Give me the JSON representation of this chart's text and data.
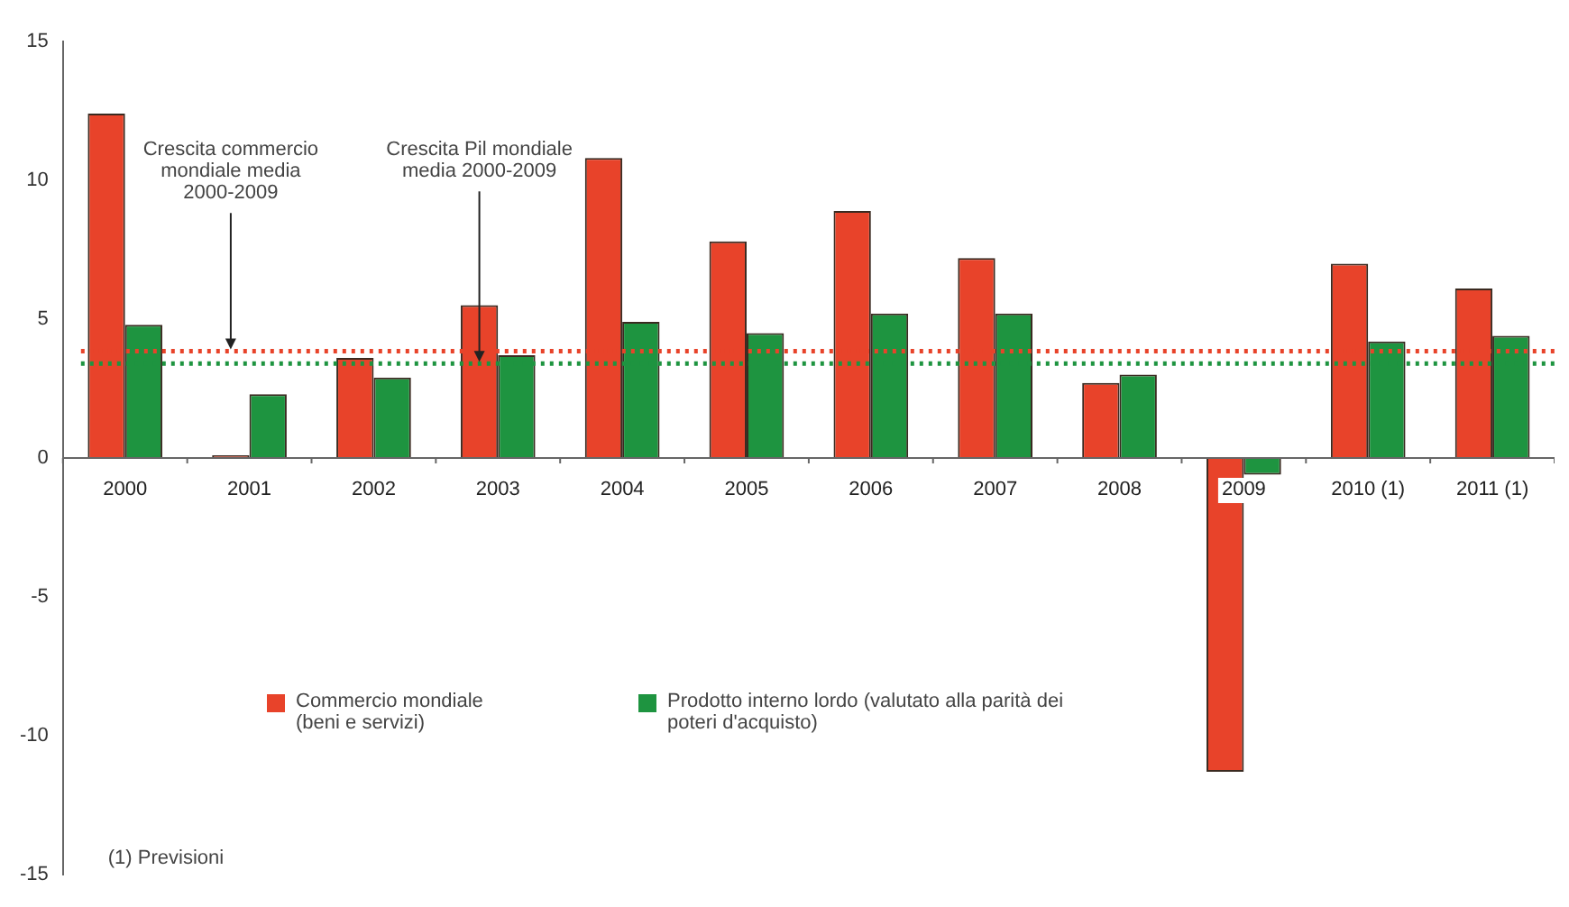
{
  "chart_data": {
    "type": "bar",
    "categories": [
      "2000",
      "2001",
      "2002",
      "2003",
      "2004",
      "2005",
      "2006",
      "2007",
      "2008",
      "2009",
      "2010 (1)",
      "2011 (1)"
    ],
    "series": [
      {
        "name": "Commercio mondiale (beni e servizi)",
        "color": "#e8432a",
        "values": [
          12.4,
          0.1,
          3.6,
          5.5,
          10.8,
          7.8,
          8.9,
          7.2,
          2.7,
          -11.3,
          7.0,
          6.1
        ]
      },
      {
        "name": "Prodotto interno lordo (valutato alla parità dei poteri d'acquisto)",
        "color": "#1e9440",
        "values": [
          4.8,
          2.3,
          2.9,
          3.7,
          4.9,
          4.5,
          5.2,
          5.2,
          3.0,
          -0.6,
          4.2,
          4.4
        ]
      }
    ],
    "ylim": [
      -15,
      15
    ],
    "yticks": [
      -15,
      -10,
      -5,
      0,
      5,
      10,
      15
    ],
    "grid": false,
    "legend": "bottom left",
    "ref_lines": [
      {
        "axis": "y",
        "value": 3.85,
        "label": "Crescita commercio mondiale media 2000-2009",
        "color": "#e8432a",
        "line_style": "dotted"
      },
      {
        "axis": "y",
        "value": 3.4,
        "label": "Crescita Pil mondiale media 2000-2009",
        "color": "#1e9440",
        "line_style": "dotted"
      }
    ],
    "annotations": [
      "(1) Previsioni"
    ]
  }
}
